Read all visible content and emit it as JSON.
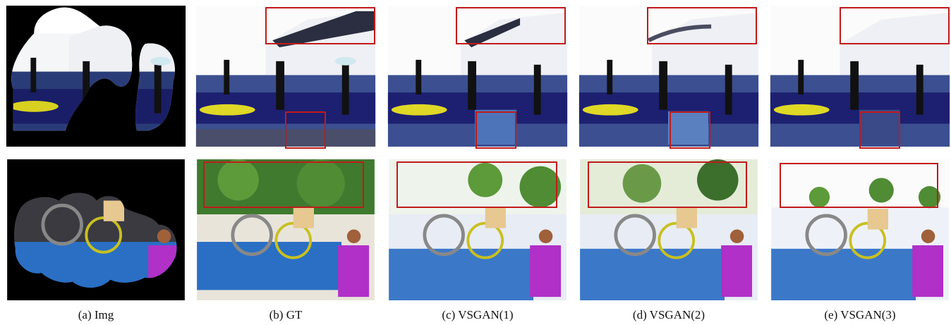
{
  "figure": {
    "captions": [
      "(a) Img",
      "(b) GT",
      "(c) VSGAN(1)",
      "(d) VSGAN(2)",
      "(e) VSGAN(3)"
    ]
  },
  "colors": {
    "highlight_box": "#c21a1a",
    "mask": "#000000"
  }
}
